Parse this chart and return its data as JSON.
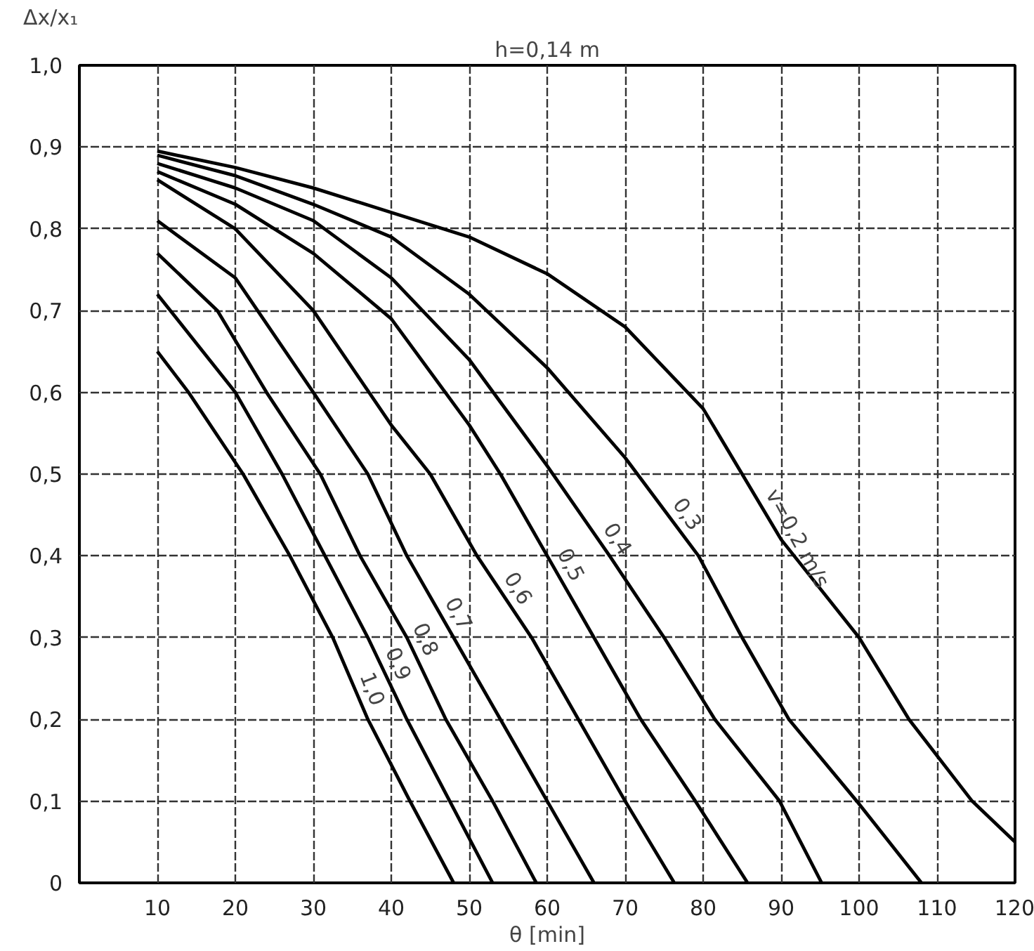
{
  "chart_data": {
    "type": "line",
    "title": "h=0,14 m",
    "xlabel": "θ [min]",
    "ylabel": "Δx/x₁",
    "xlim": [
      0,
      120
    ],
    "xticks": [
      10,
      20,
      30,
      40,
      50,
      60,
      70,
      80,
      90,
      100,
      110,
      120
    ],
    "ylim": [
      0,
      1.0
    ],
    "yticks": [
      {
        "value": 0,
        "label": "0"
      },
      {
        "value": 0.1,
        "label": "0,1"
      },
      {
        "value": 0.2,
        "label": "0,2"
      },
      {
        "value": 0.3,
        "label": "0,3"
      },
      {
        "value": 0.4,
        "label": "0,4"
      },
      {
        "value": 0.5,
        "label": "0,5"
      },
      {
        "value": 0.6,
        "label": "0,6"
      },
      {
        "value": 0.7,
        "label": "0,7"
      },
      {
        "value": 0.8,
        "label": "0,8"
      },
      {
        "value": 0.9,
        "label": "0,9"
      },
      {
        "value": 1.0,
        "label": "1,0"
      }
    ],
    "grid": true,
    "marker": "none",
    "line_style": "solid",
    "series": [
      {
        "name": "v=0,2 m/s",
        "color": "#000000",
        "x": [
          10,
          20,
          30,
          40,
          50,
          60,
          70,
          80,
          90,
          100,
          106.4,
          114.5,
          120
        ],
        "values": [
          0.895,
          0.875,
          0.85,
          0.82,
          0.79,
          0.745,
          0.68,
          0.58,
          0.42,
          0.3,
          0.2,
          0.1,
          0.05
        ]
      },
      {
        "name": "0,3",
        "color": "#000000",
        "x": [
          10,
          20,
          30,
          40,
          50,
          60,
          70,
          79.4,
          85,
          91,
          99.7,
          108
        ],
        "values": [
          0.89,
          0.865,
          0.83,
          0.79,
          0.72,
          0.63,
          0.52,
          0.4,
          0.3,
          0.2,
          0.1,
          0
        ]
      },
      {
        "name": "0,4",
        "color": "#000000",
        "x": [
          10,
          20,
          30,
          40,
          50,
          60,
          68,
          75,
          81.5,
          89.8,
          95.2
        ],
        "values": [
          0.88,
          0.85,
          0.81,
          0.74,
          0.64,
          0.51,
          0.4,
          0.3,
          0.2,
          0.1,
          0
        ]
      },
      {
        "name": "0,5",
        "color": "#000000",
        "x": [
          10,
          20,
          30,
          40,
          50,
          54,
          60,
          66,
          72,
          79,
          85.7
        ],
        "values": [
          0.87,
          0.83,
          0.77,
          0.69,
          0.56,
          0.5,
          0.4,
          0.3,
          0.2,
          0.1,
          0
        ]
      },
      {
        "name": "0,6",
        "color": "#000000",
        "x": [
          10,
          20,
          30,
          40,
          45,
          51,
          58,
          64,
          70,
          76.3
        ],
        "values": [
          0.86,
          0.8,
          0.7,
          0.56,
          0.5,
          0.4,
          0.3,
          0.2,
          0.1,
          0
        ]
      },
      {
        "name": "0,7",
        "color": "#000000",
        "x": [
          10,
          20,
          30,
          37,
          42,
          48,
          54,
          60,
          66
        ],
        "values": [
          0.81,
          0.74,
          0.6,
          0.5,
          0.4,
          0.3,
          0.2,
          0.1,
          0
        ]
      },
      {
        "name": "0,8",
        "color": "#000000",
        "x": [
          10,
          17.7,
          24,
          30.9,
          36,
          42,
          47,
          53,
          58.6
        ],
        "values": [
          0.77,
          0.7,
          0.6,
          0.5,
          0.4,
          0.3,
          0.2,
          0.1,
          0
        ]
      },
      {
        "name": "0,9",
        "color": "#000000",
        "x": [
          10,
          20,
          26,
          31.5,
          37,
          42,
          47.5,
          53
        ],
        "values": [
          0.72,
          0.6,
          0.5,
          0.4,
          0.3,
          0.2,
          0.1,
          0
        ]
      },
      {
        "name": "1,0",
        "color": "#000000",
        "x": [
          10,
          14,
          21,
          27,
          32.5,
          37,
          42.4,
          48
        ],
        "values": [
          0.65,
          0.6,
          0.5,
          0.4,
          0.3,
          0.2,
          0.1,
          0
        ]
      }
    ]
  }
}
